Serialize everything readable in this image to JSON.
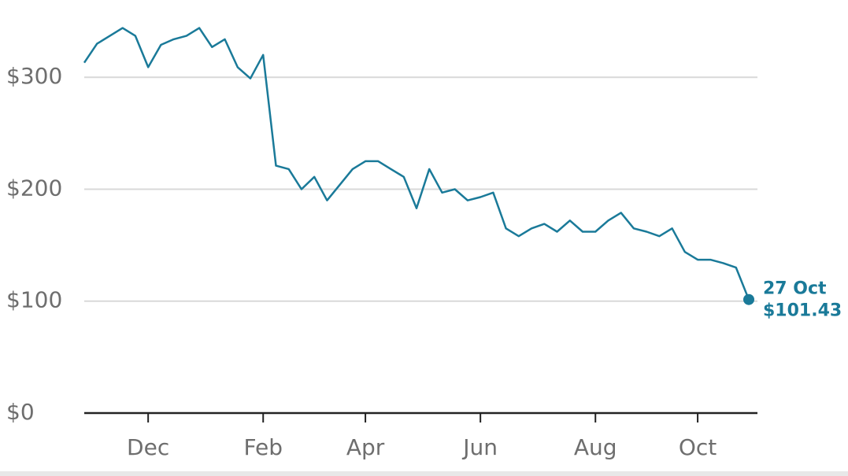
{
  "chart_data": {
    "type": "line",
    "categories": [
      null,
      null,
      null,
      null,
      null,
      "Dec",
      null,
      null,
      null,
      null,
      null,
      null,
      null,
      null,
      "Feb",
      null,
      null,
      null,
      null,
      null,
      null,
      null,
      "Apr",
      null,
      null,
      null,
      null,
      null,
      null,
      null,
      null,
      "Jun",
      null,
      null,
      null,
      null,
      null,
      null,
      null,
      null,
      "Aug",
      null,
      null,
      null,
      null,
      null,
      null,
      null,
      "Oct",
      null,
      null,
      null,
      null
    ],
    "values": [
      313,
      330,
      337,
      344,
      337,
      309,
      329,
      334,
      337,
      344,
      327,
      334,
      309,
      299,
      320,
      221,
      218,
      200,
      211,
      190,
      204,
      218,
      225,
      225,
      218,
      211,
      183,
      218,
      197,
      200,
      190,
      193,
      197,
      165,
      158,
      165,
      169,
      162,
      172,
      162,
      162,
      172,
      179,
      165,
      162,
      158,
      165,
      144,
      137,
      137,
      134,
      130,
      101.43
    ],
    "color": "#1a7a99",
    "ylim": [
      0,
      355
    ],
    "yticks": [
      {
        "value": 0,
        "label": "$0"
      },
      {
        "value": 100,
        "label": "$100"
      },
      {
        "value": 200,
        "label": "$200"
      },
      {
        "value": 300,
        "label": "$300"
      }
    ],
    "grid": true,
    "annotation": {
      "date": "27 Oct",
      "label": "$101.43"
    }
  }
}
